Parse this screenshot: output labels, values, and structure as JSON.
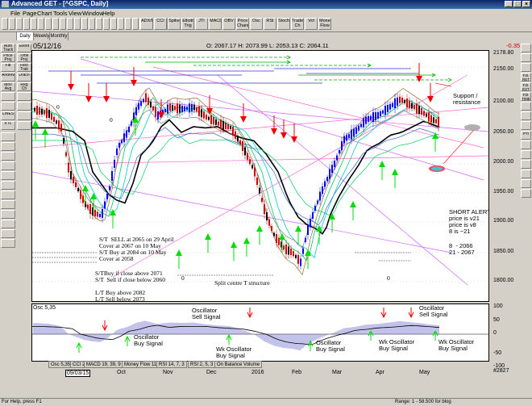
{
  "window": {
    "title": "Advanced GET - [^GSPC, Daily]",
    "controls": [
      "_",
      "□",
      "×"
    ]
  },
  "menu": [
    "File",
    "Page",
    "Chart",
    "Tools",
    "View",
    "Window",
    "Help"
  ],
  "toolbar": {
    "left_buttons": [
      "",
      "",
      "",
      "",
      "",
      "",
      "",
      "",
      "",
      "",
      "",
      "",
      "",
      "",
      "",
      "",
      "",
      "",
      "",
      "",
      "",
      "",
      "",
      "",
      "",
      "",
      "",
      "",
      "",
      ""
    ],
    "study_buttons": [
      "ADX/DMI",
      "CCI",
      "Spike",
      "Elliott Trig",
      "JTI",
      "MACD",
      "OBV",
      "Price Channel",
      "Osc",
      "RSI",
      "Stoch",
      "Trade Ch",
      "Vol",
      "Money Flow"
    ]
  },
  "tabs": [
    "Daily",
    "Weekly",
    "Monthly"
  ],
  "chart_header": {
    "date": "05/12/16",
    "ohlc": "O: 2067.17  H: 2073.99  L: 2053.13  C: 2064.11",
    "change": "-0.35"
  },
  "left_tools": [
    "Auto Track",
    "Elliott",
    "Price Proj",
    "Time Proj",
    "Fib",
    "Fibo Trak",
    "Andrew",
    "Drach",
    "Mov Avg",
    "Reg Ch",
    "",
    "",
    "",
    "",
    "LINES",
    "",
    "XTL",
    ""
  ],
  "right_tools": [
    "",
    "",
    "",
    "F.B. RET",
    "F.B. EXT",
    "F.B. TIME",
    "",
    "",
    "",
    "PTI",
    "",
    "",
    "",
    "",
    "",
    ""
  ],
  "price_axis": [
    "2178.80",
    "2150.00",
    "2100.00",
    "2050.00",
    "2000.00",
    "1950.00",
    "1900.00",
    "1850.00",
    "1800.00"
  ],
  "osc_axis": [
    "100",
    "50",
    "0",
    "-50",
    "-100"
  ],
  "annotations": {
    "support": "Support /\nresistance",
    "short_alert": "SHORT ALERT\nprice is v21\nprice is v8\n8 is ~21",
    "targets": "8  - 2066\n21 - 2067",
    "st_trades": "S/T  SELL at 2065 on 29 April\nCover at 2067 on 10 May\nS/T Buy at 2084 on 10 May\nCover at 2058",
    "st_buy": "S/TBuy if close above 2071\nS/T  Sell if close below 2060",
    "lt": "L/T Buy above 2082\nL/T Sell below 2073",
    "split": "Split centre T structure",
    "zero1": "0",
    "zero2": "0",
    "zero3": "0",
    "zero4": "0"
  },
  "osc_annotations": {
    "label": "Osc 5,35",
    "sell1": "Oscillator\nSell Signal",
    "sell2": "Oscillator\nSell Signal",
    "buy1": "Oscillator\nBuy Signal",
    "buy2": "Wk Oscillator\nBuy Signal",
    "buy3": "Oscillator\nBuy Signal",
    "buy4": "Wk Oscillator\nBuy Signal",
    "buy5": "Wk Oscillator\nBuy Signal"
  },
  "osc_tabs": [
    "Osc 5,35",
    "CCI 20",
    "MACD 19, 39, 9",
    "Money Flow 11",
    "RSI 14, 7, 3",
    "RSI 2, 5, 3",
    "On Balance Volume"
  ],
  "time_axis": [
    "09/03/15",
    "Oct",
    "Nov",
    "Dec",
    "2016",
    "Feb",
    "Mar",
    "Apr",
    "May"
  ],
  "status": {
    "left": "For Help, press F1",
    "right": "Range: 1 - 58.500 for blog",
    "id": "#2827"
  }
}
